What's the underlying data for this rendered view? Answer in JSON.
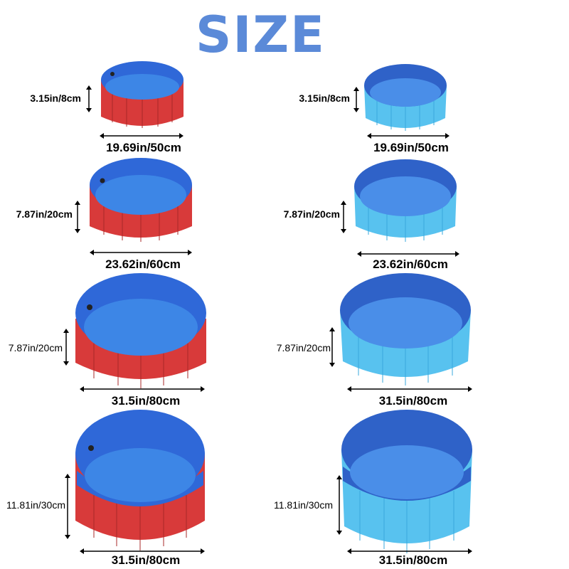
{
  "title": "SIZE",
  "colors": {
    "title": "#5b8ad8",
    "red_outer": "#d83a3a",
    "red_outer_dark": "#b52a2a",
    "blue_inner": "#2f68d8",
    "blue_floor": "#3d86e6",
    "light_outer": "#58c2ef",
    "light_outer_dark": "#3aa8dc",
    "light_inner": "#2f62c8",
    "light_floor": "#4a8ee8"
  },
  "sizes": [
    {
      "height_label": "3.15in/8cm",
      "width_label": "19.69in/50cm"
    },
    {
      "height_label": "7.87in/20cm",
      "width_label": "23.62in/60cm"
    },
    {
      "height_label": "7.87in/20cm",
      "width_label": "31.5in/80cm"
    },
    {
      "height_label": "11.81in/30cm",
      "width_label": "31.5in/80cm"
    }
  ],
  "variants": [
    "red",
    "light-blue"
  ]
}
